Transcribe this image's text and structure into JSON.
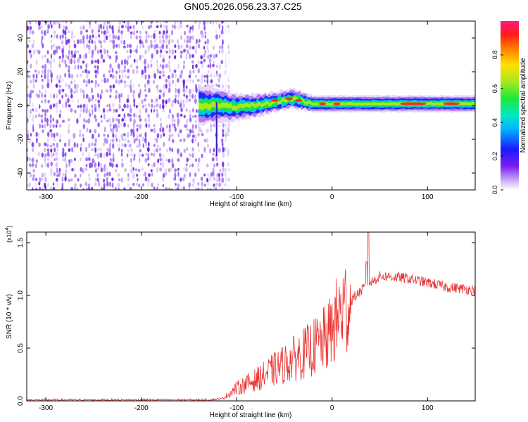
{
  "title": "GN05.2026.056.23.37.C25",
  "colors": {
    "snr_line": "#e8302e",
    "scatter_violet": "#6a1ee0",
    "band_blue": "#1a2cff",
    "band_green": "#1de040",
    "band_red": "#ff2a2a"
  },
  "chart_data": [
    {
      "type": "heatmap",
      "name": "spectrogram",
      "xlabel": "Height of straight line (km)",
      "ylabel": "Frequency (Hz)",
      "xlim": [
        -320,
        150
      ],
      "ylim": [
        -50,
        50
      ],
      "xticks": [
        -300,
        -200,
        -100,
        0,
        100
      ],
      "yticks": [
        -40,
        -20,
        0,
        20,
        40
      ],
      "xtick_labels": [
        "-300",
        "-200",
        "-100",
        "0",
        "100"
      ],
      "ytick_labels": [
        "-40",
        "-20",
        "0",
        "20",
        "40"
      ],
      "noise_region_x": [
        -320,
        -115
      ],
      "signal_band": [
        {
          "x": -140,
          "center": 0,
          "width": 12
        },
        {
          "x": -120,
          "center": 0,
          "width": 10
        },
        {
          "x": -100,
          "center": -1,
          "width": 8
        },
        {
          "x": -80,
          "center": 0,
          "width": 7
        },
        {
          "x": -60,
          "center": 2,
          "width": 6
        },
        {
          "x": -40,
          "center": 4,
          "width": 6
        },
        {
          "x": -20,
          "center": 1,
          "width": 5
        },
        {
          "x": 0,
          "center": 1,
          "width": 5
        },
        {
          "x": 50,
          "center": 1,
          "width": 5
        },
        {
          "x": 100,
          "center": 1,
          "width": 5
        },
        {
          "x": 150,
          "center": 1,
          "width": 5
        }
      ],
      "colorbar": {
        "label": "Normalized spectral amplitude",
        "range": [
          0,
          1
        ],
        "ticks": [
          0.0,
          0.2,
          0.4,
          0.6,
          0.8
        ],
        "tick_labels": [
          "0.0",
          "0.2",
          "0.4",
          "0.6",
          "0.8"
        ]
      }
    },
    {
      "type": "line",
      "name": "snr",
      "xlabel": "Height of straight line (km)",
      "ylabel": "SNR (10 * v/v)",
      "yscale_label": "(x10",
      "yscale_exp": "4",
      "yscale_close": ")",
      "xlim": [
        -320,
        150
      ],
      "ylim": [
        0,
        1.6
      ],
      "xticks": [
        -300,
        -200,
        -100,
        0,
        100
      ],
      "yticks": [
        0.0,
        0.5,
        1.0,
        1.5
      ],
      "xtick_labels": [
        "-300",
        "-200",
        "-100",
        "0",
        "100"
      ],
      "ytick_labels": [
        "0.0",
        "0.5",
        "1.0",
        "1.5"
      ],
      "envelope": {
        "x": [
          -320,
          -130,
          -115,
          -100,
          -80,
          -60,
          -40,
          -20,
          -5,
          10,
          25,
          35,
          40,
          50,
          60,
          80,
          100,
          120,
          150
        ],
        "y": [
          0.01,
          0.01,
          0.02,
          0.12,
          0.2,
          0.3,
          0.4,
          0.5,
          0.6,
          0.85,
          1.0,
          1.08,
          1.12,
          1.18,
          1.18,
          1.16,
          1.12,
          1.08,
          1.05
        ]
      },
      "spikes": [
        {
          "x": 38,
          "y": 1.6
        },
        {
          "x": 36,
          "y": 1.32
        }
      ]
    }
  ]
}
